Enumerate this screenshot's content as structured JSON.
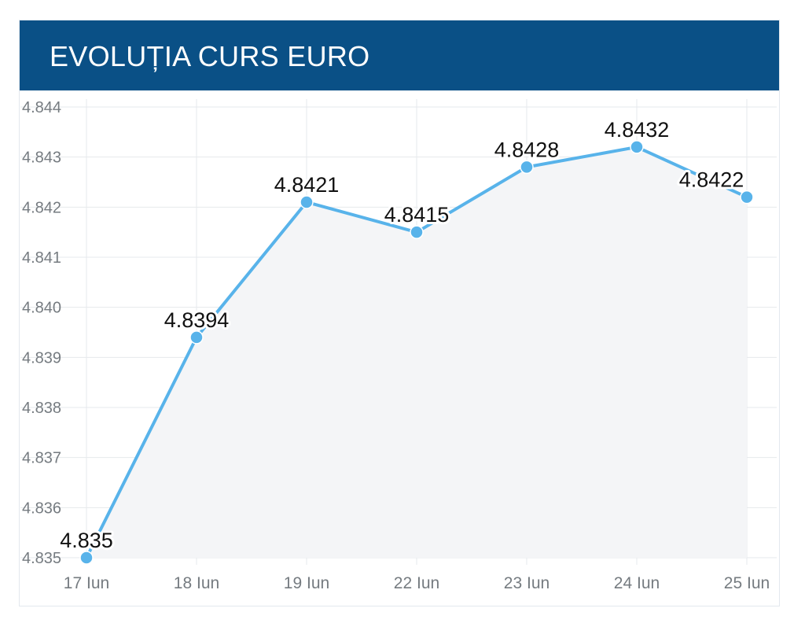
{
  "header": {
    "title": "EVOLUȚIA CURS EURO"
  },
  "colors": {
    "header_bg": "#0a5086",
    "line": "#58b3ea",
    "area_fill": "#f4f5f7",
    "grid": "#e6e9ec"
  },
  "chart_data": {
    "type": "line",
    "title": "EVOLUȚIA CURS EURO",
    "xlabel": "",
    "ylabel": "",
    "categories": [
      "17 Iun",
      "18 Iun",
      "19 Iun",
      "22 Iun",
      "23 Iun",
      "24 Iun",
      "25 Iun"
    ],
    "series": [
      {
        "values": [
          4.835,
          4.8394,
          4.8421,
          4.8415,
          4.8428,
          4.8432,
          4.8422
        ],
        "labels": [
          "4.835",
          "4.8394",
          "4.8421",
          "4.8415",
          "4.8428",
          "4.8432",
          "4.8422"
        ]
      }
    ],
    "ylim": [
      4.835,
      4.844
    ],
    "yticks": [
      "4.835",
      "4.836",
      "4.837",
      "4.838",
      "4.839",
      "4.840",
      "4.841",
      "4.842",
      "4.843",
      "4.844"
    ],
    "grid": true,
    "legend": "none",
    "area": true
  }
}
